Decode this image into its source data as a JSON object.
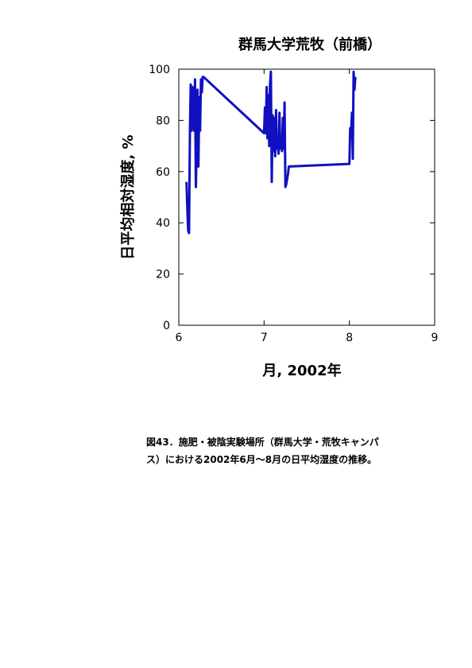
{
  "chart_data": {
    "type": "line",
    "title": "群馬大学荒牧（前橋）",
    "xlabel": "月, 2002年",
    "ylabel": "日平均相対湿度, %",
    "xlim": [
      6,
      9
    ],
    "ylim": [
      0,
      100
    ],
    "x_ticks": [
      "6",
      "7",
      "8",
      "9"
    ],
    "y_ticks": [
      "0",
      "20",
      "40",
      "60",
      "80",
      "100"
    ],
    "grid": false,
    "legend": "none",
    "series": [
      {
        "color": "#1010c0",
        "x": [
          6.09,
          6.1,
          6.11,
          6.12,
          6.13,
          6.14,
          6.15,
          6.16,
          6.17,
          6.18,
          6.19,
          6.2,
          6.21,
          6.22,
          6.23,
          6.24,
          6.25,
          6.26,
          6.27,
          6.28,
          6.29,
          7.0,
          7.01,
          7.02,
          7.03,
          7.04,
          7.05,
          7.06,
          7.07,
          7.08,
          7.09,
          7.1,
          7.11,
          7.12,
          7.13,
          7.14,
          7.15,
          7.16,
          7.17,
          7.18,
          7.19,
          7.2,
          7.21,
          7.22,
          7.23,
          7.24,
          7.25,
          7.26,
          7.27,
          7.28,
          7.29,
          8.0,
          8.01,
          8.02,
          8.03,
          8.04,
          8.05,
          8.06,
          8.07
        ],
        "y": [
          56,
          46,
          37,
          36,
          75,
          94,
          76,
          93,
          90,
          76,
          96,
          54,
          71,
          92,
          62,
          89,
          76,
          96,
          91,
          97,
          97,
          75,
          85,
          75,
          93,
          73,
          90,
          70,
          94,
          99,
          56,
          82,
          68,
          81,
          66,
          84,
          69,
          71,
          67,
          83,
          69,
          72,
          68,
          81,
          69,
          87,
          54,
          55,
          57,
          59,
          62,
          63,
          77,
          74,
          83,
          65,
          99,
          92,
          97
        ]
      }
    ]
  },
  "caption": {
    "line1": "図43．施肥・被陰実験場所（群馬大学・荒牧キャンパ",
    "line2": "ス）における2002年6月～8月の日平均湿度の推移。"
  }
}
